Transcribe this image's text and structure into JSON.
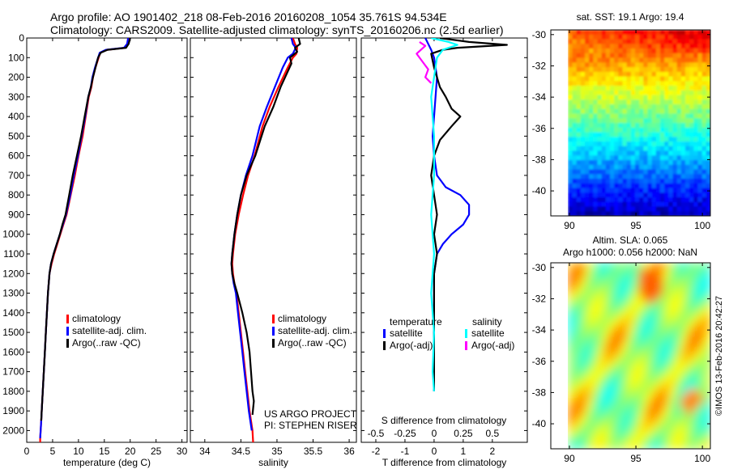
{
  "header": {
    "line1": "Argo profile: AO 1901402_218 08-Feb-2016 20160208_1054 35.761S 94.534E",
    "line2": "Climatology: CARS2009. Satellite-adjusted climatology: synTS_20160206.nc (2.5d earlier)"
  },
  "colors": {
    "climatology": "#ff0000",
    "satellite_adj": "#0000ff",
    "argo": "#000000",
    "argo_salinity": "#ff00ff",
    "satellite_salinity": "#00ffff"
  },
  "chart_data": [
    {
      "type": "line",
      "id": "temperature",
      "xlabel": "temperature (deg C)",
      "xlim": [
        0,
        31
      ],
      "xticks": [
        0,
        5,
        10,
        15,
        20,
        25,
        30
      ],
      "ylim": [
        2060,
        0
      ],
      "yticks": [
        0,
        100,
        200,
        300,
        400,
        500,
        600,
        700,
        800,
        900,
        1000,
        1100,
        1200,
        1300,
        1400,
        1500,
        1600,
        1700,
        1800,
        1900,
        2000
      ],
      "legend": [
        "climatology",
        "satellite-adj. clim.",
        "Argo(..raw -QC)"
      ],
      "series": [
        {
          "name": "climatology",
          "color": "#ff0000",
          "x": [
            19.9,
            19.6,
            19.0,
            15.5,
            14.2,
            13.9,
            13.3,
            12.8,
            12.5,
            12.0,
            11.4,
            10.8,
            10.0,
            9.3,
            8.5,
            7.7,
            7.1,
            6.5,
            5.9,
            5.3,
            4.8,
            4.4,
            4.1,
            3.9,
            3.7,
            3.5,
            3.3,
            3.1,
            2.9,
            2.8,
            2.7,
            2.6,
            2.6
          ],
          "y": [
            0,
            30,
            50,
            60,
            75,
            100,
            150,
            200,
            250,
            300,
            400,
            500,
            600,
            700,
            800,
            900,
            950,
            1000,
            1050,
            1100,
            1150,
            1200,
            1300,
            1400,
            1500,
            1600,
            1700,
            1800,
            1900,
            1950,
            2000,
            2040,
            2060
          ]
        },
        {
          "name": "satellite-adj. clim.",
          "color": "#0000ff",
          "x": [
            19.6,
            19.4,
            18.8,
            15.3,
            14.1,
            13.8,
            13.2,
            12.7,
            12.4,
            11.9,
            11.3,
            10.6,
            9.9,
            9.1,
            8.4,
            7.6,
            7.0,
            6.4,
            5.8,
            5.2,
            4.7,
            4.4,
            4.1,
            3.9,
            3.7,
            3.5,
            3.3,
            3.1,
            2.9,
            2.8,
            2.7,
            2.6
          ],
          "y": [
            0,
            30,
            50,
            60,
            75,
            100,
            150,
            200,
            250,
            300,
            400,
            500,
            600,
            700,
            800,
            900,
            950,
            1000,
            1050,
            1100,
            1150,
            1200,
            1300,
            1400,
            1500,
            1600,
            1700,
            1800,
            1900,
            1950,
            2000,
            2040
          ]
        },
        {
          "name": "Argo(..raw -QC)",
          "color": "#000000",
          "x": [
            20.0,
            19.7,
            19.2,
            15.6,
            14.3,
            13.8,
            13.3,
            12.8,
            12.4,
            11.9,
            11.2,
            10.5,
            9.7,
            8.9,
            8.2,
            7.5,
            6.9,
            6.4,
            5.8,
            5.2,
            4.7,
            4.4,
            4.1,
            3.9,
            3.7,
            3.5,
            3.3,
            3.1,
            2.9,
            2.8
          ],
          "y": [
            0,
            30,
            50,
            60,
            75,
            100,
            150,
            200,
            250,
            300,
            400,
            500,
            600,
            700,
            800,
            900,
            950,
            1000,
            1050,
            1100,
            1150,
            1200,
            1300,
            1400,
            1500,
            1600,
            1700,
            1800,
            1900,
            1950
          ]
        }
      ]
    },
    {
      "type": "line",
      "id": "salinity",
      "xlabel": "salinity",
      "xlim": [
        33.8,
        36.1
      ],
      "xticks": [
        34,
        34.5,
        35,
        35.5,
        36
      ],
      "ylim": [
        2060,
        0
      ],
      "legend": [
        "climatology",
        "satellite-adj. clim.",
        "Argo(..raw -QC)"
      ],
      "annotation": [
        "US ARGO PROJECT",
        "PI: STEPHEN RISER"
      ],
      "series": [
        {
          "name": "climatology",
          "color": "#ff0000",
          "x": [
            35.22,
            35.25,
            35.28,
            35.27,
            35.22,
            35.15,
            35.02,
            34.9,
            34.8,
            34.69,
            34.6,
            34.53,
            34.47,
            34.42,
            34.39,
            34.38,
            34.39,
            34.41,
            34.44,
            34.47,
            34.5,
            34.53,
            34.56,
            34.59,
            34.62,
            34.64,
            34.66,
            34.67
          ],
          "y": [
            0,
            30,
            50,
            80,
            100,
            150,
            250,
            350,
            450,
            600,
            700,
            800,
            900,
            1000,
            1100,
            1150,
            1200,
            1250,
            1300,
            1400,
            1500,
            1600,
            1700,
            1800,
            1900,
            1950,
            2000,
            2060
          ]
        },
        {
          "name": "satellite-adj. clim.",
          "color": "#0000ff",
          "x": [
            35.2,
            35.22,
            35.26,
            35.22,
            35.15,
            35.08,
            34.97,
            34.86,
            34.76,
            34.66,
            34.57,
            34.5,
            34.45,
            34.41,
            34.38,
            34.37,
            34.38,
            34.4,
            34.43,
            34.46,
            34.49,
            34.52,
            34.55,
            34.58,
            34.61,
            34.63,
            34.65
          ],
          "y": [
            0,
            30,
            50,
            80,
            100,
            150,
            250,
            350,
            450,
            600,
            700,
            800,
            900,
            1000,
            1100,
            1150,
            1200,
            1250,
            1300,
            1400,
            1500,
            1600,
            1700,
            1800,
            1900,
            1950,
            2000
          ]
        },
        {
          "name": "Argo(..raw -QC)",
          "color": "#000000",
          "x": [
            35.3,
            35.32,
            35.25,
            35.28,
            35.18,
            35.2,
            35.05,
            34.95,
            34.83,
            34.7,
            34.58,
            34.5,
            34.45,
            34.41,
            34.38,
            34.37,
            34.38,
            34.41,
            34.45,
            34.52,
            34.58,
            34.62,
            34.64,
            34.66,
            34.68,
            34.66
          ],
          "y": [
            0,
            30,
            50,
            70,
            100,
            130,
            250,
            350,
            450,
            600,
            700,
            800,
            900,
            1000,
            1100,
            1150,
            1200,
            1250,
            1300,
            1400,
            1500,
            1600,
            1700,
            1800,
            1850,
            1920
          ]
        }
      ]
    },
    {
      "type": "line",
      "id": "difference",
      "xlabel": "T difference from climatology",
      "xlabel_top": "S difference from climatology",
      "xlim": [
        -2.5,
        3.2
      ],
      "xticks": [
        -2,
        -1,
        0,
        1,
        2
      ],
      "sticks": [
        -0.5,
        -0.25,
        0,
        0.25,
        0.5
      ],
      "legend_titles": [
        "temperature",
        "salinity"
      ],
      "legend": [
        "satellite",
        "Argo(-adj)",
        "satellite",
        "Argo(-adj)"
      ],
      "series": [
        {
          "name": "temperature satellite",
          "color": "#0000ff",
          "x": [
            -0.3,
            -0.2,
            -0.1,
            0.0,
            0.1,
            0.05,
            0.0,
            -0.05,
            0.0,
            0.1,
            0.4,
            0.9,
            1.2,
            1.2,
            1.0,
            0.6,
            0.3,
            0.1,
            0.0,
            0.0,
            0.0,
            0.0
          ],
          "y": [
            0,
            30,
            60,
            100,
            200,
            300,
            400,
            500,
            600,
            700,
            760,
            800,
            850,
            900,
            950,
            1000,
            1050,
            1100,
            1200,
            1400,
            1600,
            1800
          ]
        },
        {
          "name": "temperature Argo(-adj)",
          "color": "#000000",
          "x": [
            0.2,
            1.2,
            2.5,
            0.8,
            0.3,
            -0.1,
            0.0,
            0.2,
            0.4,
            0.6,
            0.9,
            0.6,
            0.2,
            0.0,
            -0.1,
            0.0,
            0.1,
            0.0,
            0.1,
            0.0,
            0.0,
            0.0,
            0.0
          ],
          "y": [
            0,
            20,
            35,
            50,
            60,
            80,
            150,
            250,
            300,
            360,
            400,
            450,
            520,
            600,
            700,
            800,
            900,
            1000,
            1100,
            1200,
            1400,
            1600,
            1800
          ]
        },
        {
          "name": "salinity satellite",
          "color": "#00ffff",
          "x": [
            -0.1,
            0.5,
            0.8,
            0.3,
            0.1,
            0.0,
            -0.1,
            0.0,
            0.0,
            -0.1,
            0.0,
            -0.1,
            0.0,
            -0.05,
            0.0
          ],
          "y": [
            0,
            20,
            35,
            60,
            100,
            200,
            300,
            500,
            700,
            900,
            1100,
            1300,
            1500,
            1700,
            1800
          ]
        },
        {
          "name": "salinity Argo(-adj)",
          "color": "#ff00ff",
          "x": [
            -0.5,
            -0.3,
            -0.6,
            -0.4,
            -0.2,
            -0.3,
            -0.1
          ],
          "y": [
            20,
            40,
            80,
            120,
            160,
            200,
            230
          ]
        }
      ]
    },
    {
      "type": "heatmap",
      "id": "sst_map",
      "title": "sat. SST: 19.1  Argo: 19.4",
      "xticks": [
        90,
        95,
        100
      ],
      "yticks": [
        -30,
        -32,
        -34,
        -36,
        -38,
        -40
      ],
      "xlim": [
        88.6,
        100.6
      ],
      "ylim": [
        -41.6,
        -29.7
      ],
      "colormap": "jet"
    },
    {
      "type": "heatmap",
      "id": "sla_map",
      "title": "Altim. SLA: 0.065",
      "subtitle": "Argo h1000: 0.056  h2000: NaN",
      "xticks": [
        90,
        95,
        100
      ],
      "yticks": [
        -30,
        -32,
        -34,
        -36,
        -38,
        -40
      ],
      "xlim": [
        88.6,
        100.6
      ],
      "ylim": [
        -41.6,
        -29.7
      ],
      "colormap": "jet"
    }
  ],
  "footer_vertical": "©IMOS 13-Feb-2016 20:42:27"
}
